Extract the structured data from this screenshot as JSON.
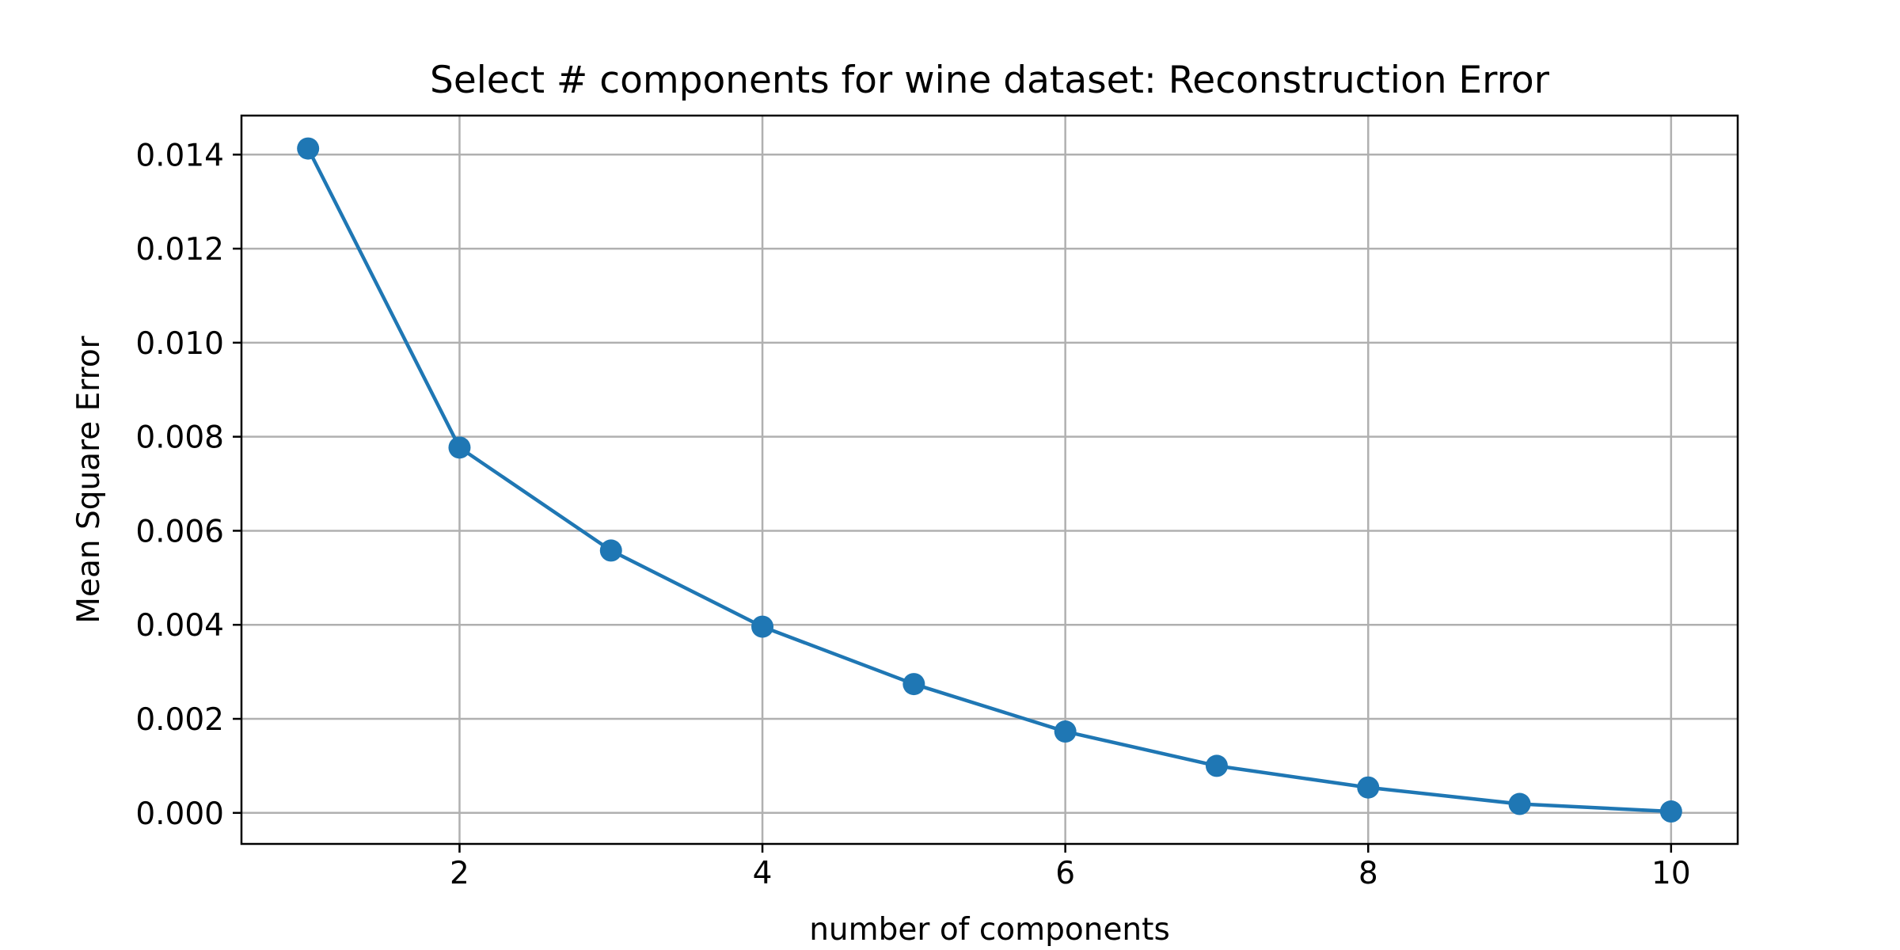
{
  "chart_data": {
    "type": "line",
    "title": "Select # components for wine dataset: Reconstruction Error",
    "xlabel": "number of components",
    "ylabel": "Mean Square Error",
    "x": [
      1,
      2,
      3,
      4,
      5,
      6,
      7,
      8,
      9,
      10
    ],
    "series": [
      {
        "values": [
          0.01413,
          0.00777,
          0.00558,
          0.00396,
          0.00274,
          0.00173,
          0.001,
          0.00054,
          0.00019,
          3e-05
        ],
        "color": "#1f77b4",
        "marker": "circle"
      }
    ],
    "xlim": [
      0.56,
      10.44
    ],
    "ylim": [
      -0.00066,
      0.01483
    ],
    "xticks": [
      2,
      4,
      6,
      8,
      10
    ],
    "xtick_labels": [
      "2",
      "4",
      "6",
      "8",
      "10"
    ],
    "yticks": [
      0.0,
      0.002,
      0.004,
      0.006,
      0.008,
      0.01,
      0.012,
      0.014
    ],
    "ytick_labels": [
      "0.000",
      "0.002",
      "0.004",
      "0.006",
      "0.008",
      "0.010",
      "0.012",
      "0.014"
    ],
    "grid": true,
    "grid_color": "#b0b0b0",
    "legend": "none"
  }
}
